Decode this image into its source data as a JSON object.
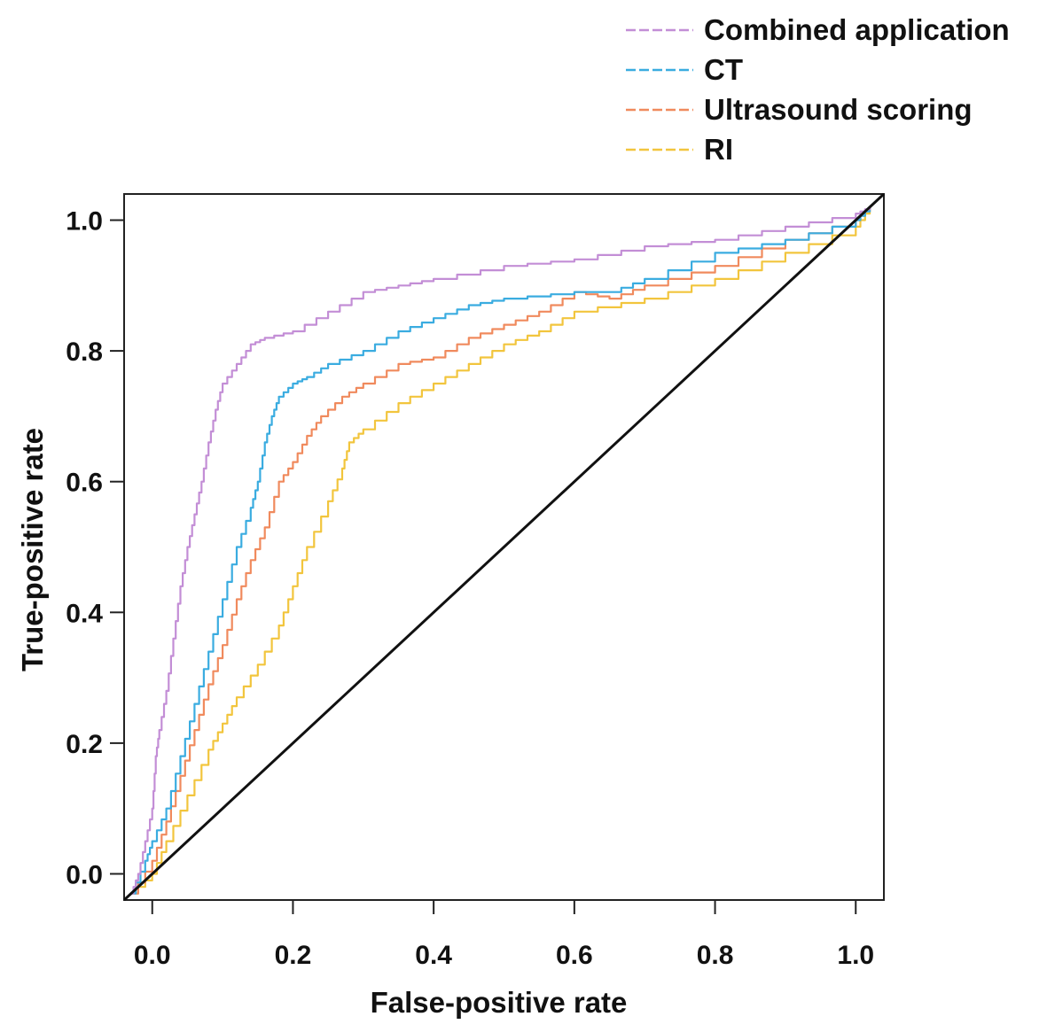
{
  "chart_data": {
    "type": "line",
    "title": "",
    "xlabel": "False-positive rate",
    "ylabel": "True-positive rate",
    "xlim": [
      -0.04,
      1.04
    ],
    "ylim": [
      -0.04,
      1.04
    ],
    "xticks": [
      "0.0",
      "0.2",
      "0.4",
      "0.6",
      "0.8",
      "1.0"
    ],
    "yticks": [
      "0.0",
      "0.2",
      "0.4",
      "0.6",
      "0.8",
      "1.0"
    ],
    "grid": false,
    "legend_placement": "top-right, outside plot",
    "series": [
      {
        "name": "Combined application",
        "color": "#c38ed6",
        "points": [
          [
            -0.03,
            -0.03
          ],
          [
            -0.02,
            0.0
          ],
          [
            -0.01,
            0.05
          ],
          [
            0.0,
            0.1
          ],
          [
            0.005,
            0.18
          ],
          [
            0.01,
            0.22
          ],
          [
            0.02,
            0.28
          ],
          [
            0.03,
            0.36
          ],
          [
            0.04,
            0.44
          ],
          [
            0.05,
            0.5
          ],
          [
            0.06,
            0.55
          ],
          [
            0.07,
            0.6
          ],
          [
            0.08,
            0.66
          ],
          [
            0.09,
            0.71
          ],
          [
            0.1,
            0.75
          ],
          [
            0.12,
            0.78
          ],
          [
            0.14,
            0.81
          ],
          [
            0.16,
            0.82
          ],
          [
            0.2,
            0.83
          ],
          [
            0.25,
            0.86
          ],
          [
            0.3,
            0.89
          ],
          [
            0.35,
            0.9
          ],
          [
            0.4,
            0.91
          ],
          [
            0.5,
            0.93
          ],
          [
            0.6,
            0.94
          ],
          [
            0.7,
            0.96
          ],
          [
            0.8,
            0.97
          ],
          [
            0.9,
            0.99
          ],
          [
            1.0,
            1.01
          ],
          [
            1.02,
            1.02
          ]
        ]
      },
      {
        "name": "CT",
        "color": "#3aace0",
        "points": [
          [
            -0.03,
            -0.03
          ],
          [
            -0.01,
            0.02
          ],
          [
            0.0,
            0.05
          ],
          [
            0.02,
            0.1
          ],
          [
            0.04,
            0.18
          ],
          [
            0.06,
            0.26
          ],
          [
            0.08,
            0.34
          ],
          [
            0.1,
            0.42
          ],
          [
            0.12,
            0.5
          ],
          [
            0.14,
            0.56
          ],
          [
            0.15,
            0.6
          ],
          [
            0.16,
            0.66
          ],
          [
            0.17,
            0.7
          ],
          [
            0.18,
            0.73
          ],
          [
            0.2,
            0.75
          ],
          [
            0.22,
            0.76
          ],
          [
            0.25,
            0.78
          ],
          [
            0.3,
            0.8
          ],
          [
            0.35,
            0.83
          ],
          [
            0.4,
            0.85
          ],
          [
            0.45,
            0.87
          ],
          [
            0.5,
            0.88
          ],
          [
            0.6,
            0.89
          ],
          [
            0.65,
            0.89
          ],
          [
            0.7,
            0.91
          ],
          [
            0.8,
            0.95
          ],
          [
            0.9,
            0.97
          ],
          [
            1.0,
            1.0
          ],
          [
            1.02,
            1.02
          ]
        ]
      },
      {
        "name": "Ultrasound scoring",
        "color": "#f08a5d",
        "points": [
          [
            -0.03,
            -0.03
          ],
          [
            0.0,
            0.02
          ],
          [
            0.02,
            0.08
          ],
          [
            0.04,
            0.15
          ],
          [
            0.06,
            0.22
          ],
          [
            0.08,
            0.29
          ],
          [
            0.1,
            0.35
          ],
          [
            0.12,
            0.42
          ],
          [
            0.14,
            0.48
          ],
          [
            0.16,
            0.53
          ],
          [
            0.18,
            0.6
          ],
          [
            0.2,
            0.63
          ],
          [
            0.22,
            0.67
          ],
          [
            0.24,
            0.7
          ],
          [
            0.27,
            0.73
          ],
          [
            0.3,
            0.75
          ],
          [
            0.35,
            0.78
          ],
          [
            0.4,
            0.79
          ],
          [
            0.45,
            0.82
          ],
          [
            0.5,
            0.84
          ],
          [
            0.55,
            0.86
          ],
          [
            0.6,
            0.89
          ],
          [
            0.65,
            0.88
          ],
          [
            0.7,
            0.9
          ],
          [
            0.8,
            0.93
          ],
          [
            0.9,
            0.97
          ],
          [
            1.0,
            1.0
          ],
          [
            1.02,
            1.02
          ]
        ]
      },
      {
        "name": "RI",
        "color": "#f2c53d",
        "points": [
          [
            -0.03,
            -0.03
          ],
          [
            0.0,
            0.0
          ],
          [
            0.02,
            0.05
          ],
          [
            0.05,
            0.12
          ],
          [
            0.08,
            0.19
          ],
          [
            0.1,
            0.23
          ],
          [
            0.12,
            0.27
          ],
          [
            0.15,
            0.32
          ],
          [
            0.18,
            0.38
          ],
          [
            0.2,
            0.44
          ],
          [
            0.22,
            0.5
          ],
          [
            0.25,
            0.57
          ],
          [
            0.27,
            0.62
          ],
          [
            0.28,
            0.66
          ],
          [
            0.3,
            0.68
          ],
          [
            0.35,
            0.72
          ],
          [
            0.4,
            0.75
          ],
          [
            0.45,
            0.78
          ],
          [
            0.5,
            0.81
          ],
          [
            0.55,
            0.83
          ],
          [
            0.6,
            0.86
          ],
          [
            0.7,
            0.88
          ],
          [
            0.8,
            0.91
          ],
          [
            0.9,
            0.95
          ],
          [
            1.0,
            0.99
          ],
          [
            1.02,
            1.02
          ]
        ]
      }
    ],
    "reference_line": {
      "color": "#111111",
      "points": [
        [
          -0.04,
          -0.04
        ],
        [
          1.04,
          1.04
        ]
      ]
    }
  }
}
